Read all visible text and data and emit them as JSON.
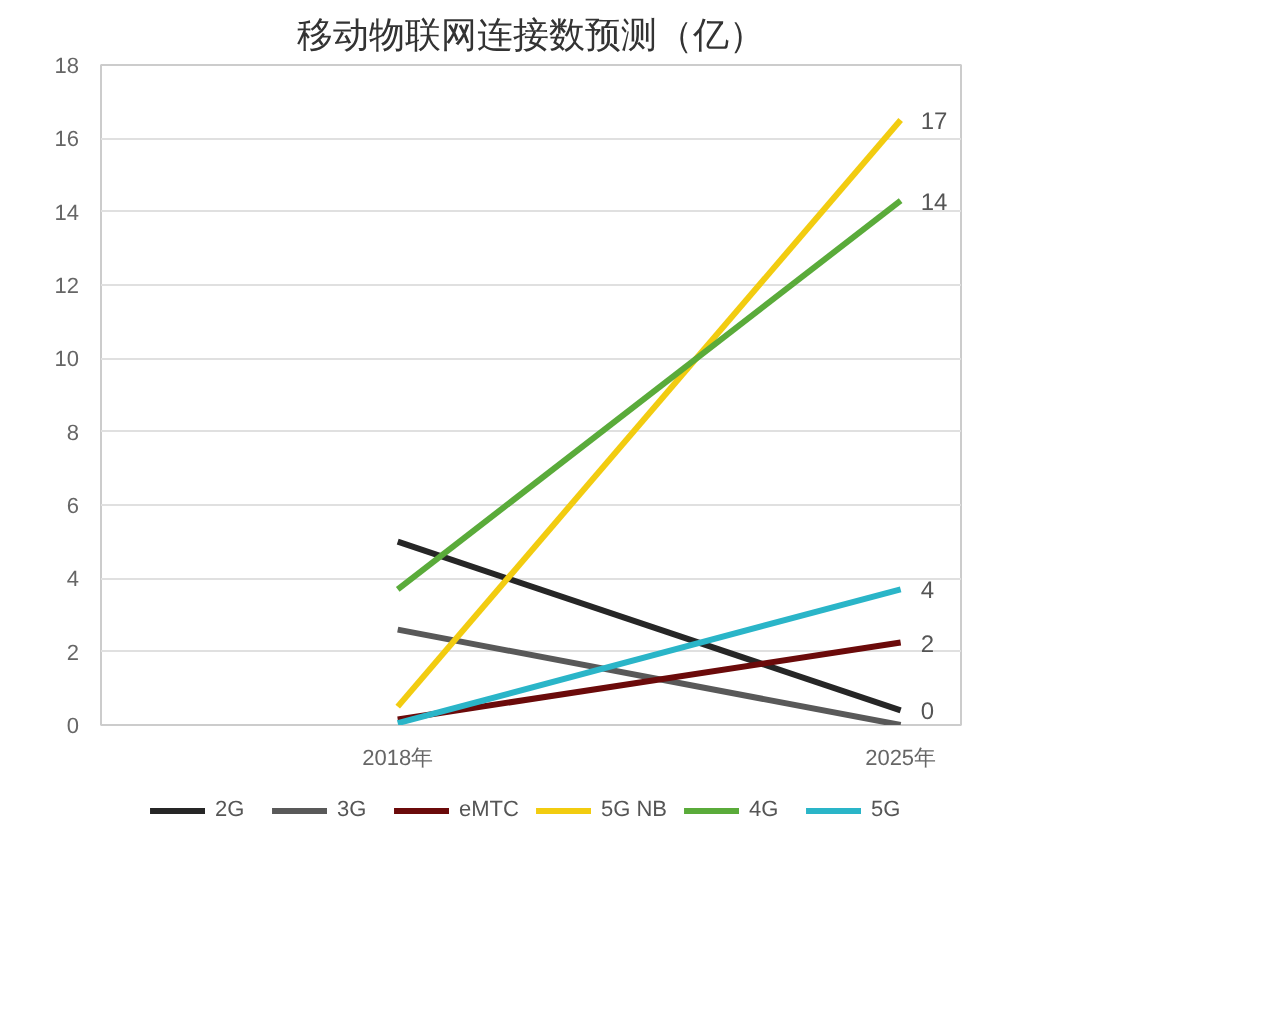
{
  "chart_data": {
    "type": "line",
    "title": "移动物联网连接数预测（亿）",
    "categories": [
      "2018年",
      "2025年"
    ],
    "series": [
      {
        "name": "2G",
        "color": "#262626",
        "values": [
          5.0,
          0.4
        ],
        "value_labels": [
          null,
          "0"
        ]
      },
      {
        "name": "3G",
        "color": "#595959",
        "values": [
          2.6,
          0.0
        ],
        "value_labels": [
          null,
          null
        ]
      },
      {
        "name": "eMTC",
        "color": "#6b0a0a",
        "values": [
          0.15,
          2.25
        ],
        "value_labels": [
          null,
          "2"
        ]
      },
      {
        "name": "5G NB",
        "color": "#f2cc10",
        "values": [
          0.5,
          16.5
        ],
        "value_labels": [
          null,
          "17"
        ]
      },
      {
        "name": "4G",
        "color": "#5aab3a",
        "values": [
          3.7,
          14.3
        ],
        "value_labels": [
          null,
          "14"
        ]
      },
      {
        "name": "5G",
        "color": "#2ab5c8",
        "values": [
          0.05,
          3.7
        ],
        "value_labels": [
          null,
          "4"
        ]
      }
    ],
    "ylim": [
      0,
      18
    ],
    "yticks": [
      0,
      2,
      4,
      6,
      8,
      10,
      12,
      14,
      16,
      18
    ],
    "grid": "y",
    "legend": "bottom",
    "marker": "none",
    "line_style": "solid"
  }
}
